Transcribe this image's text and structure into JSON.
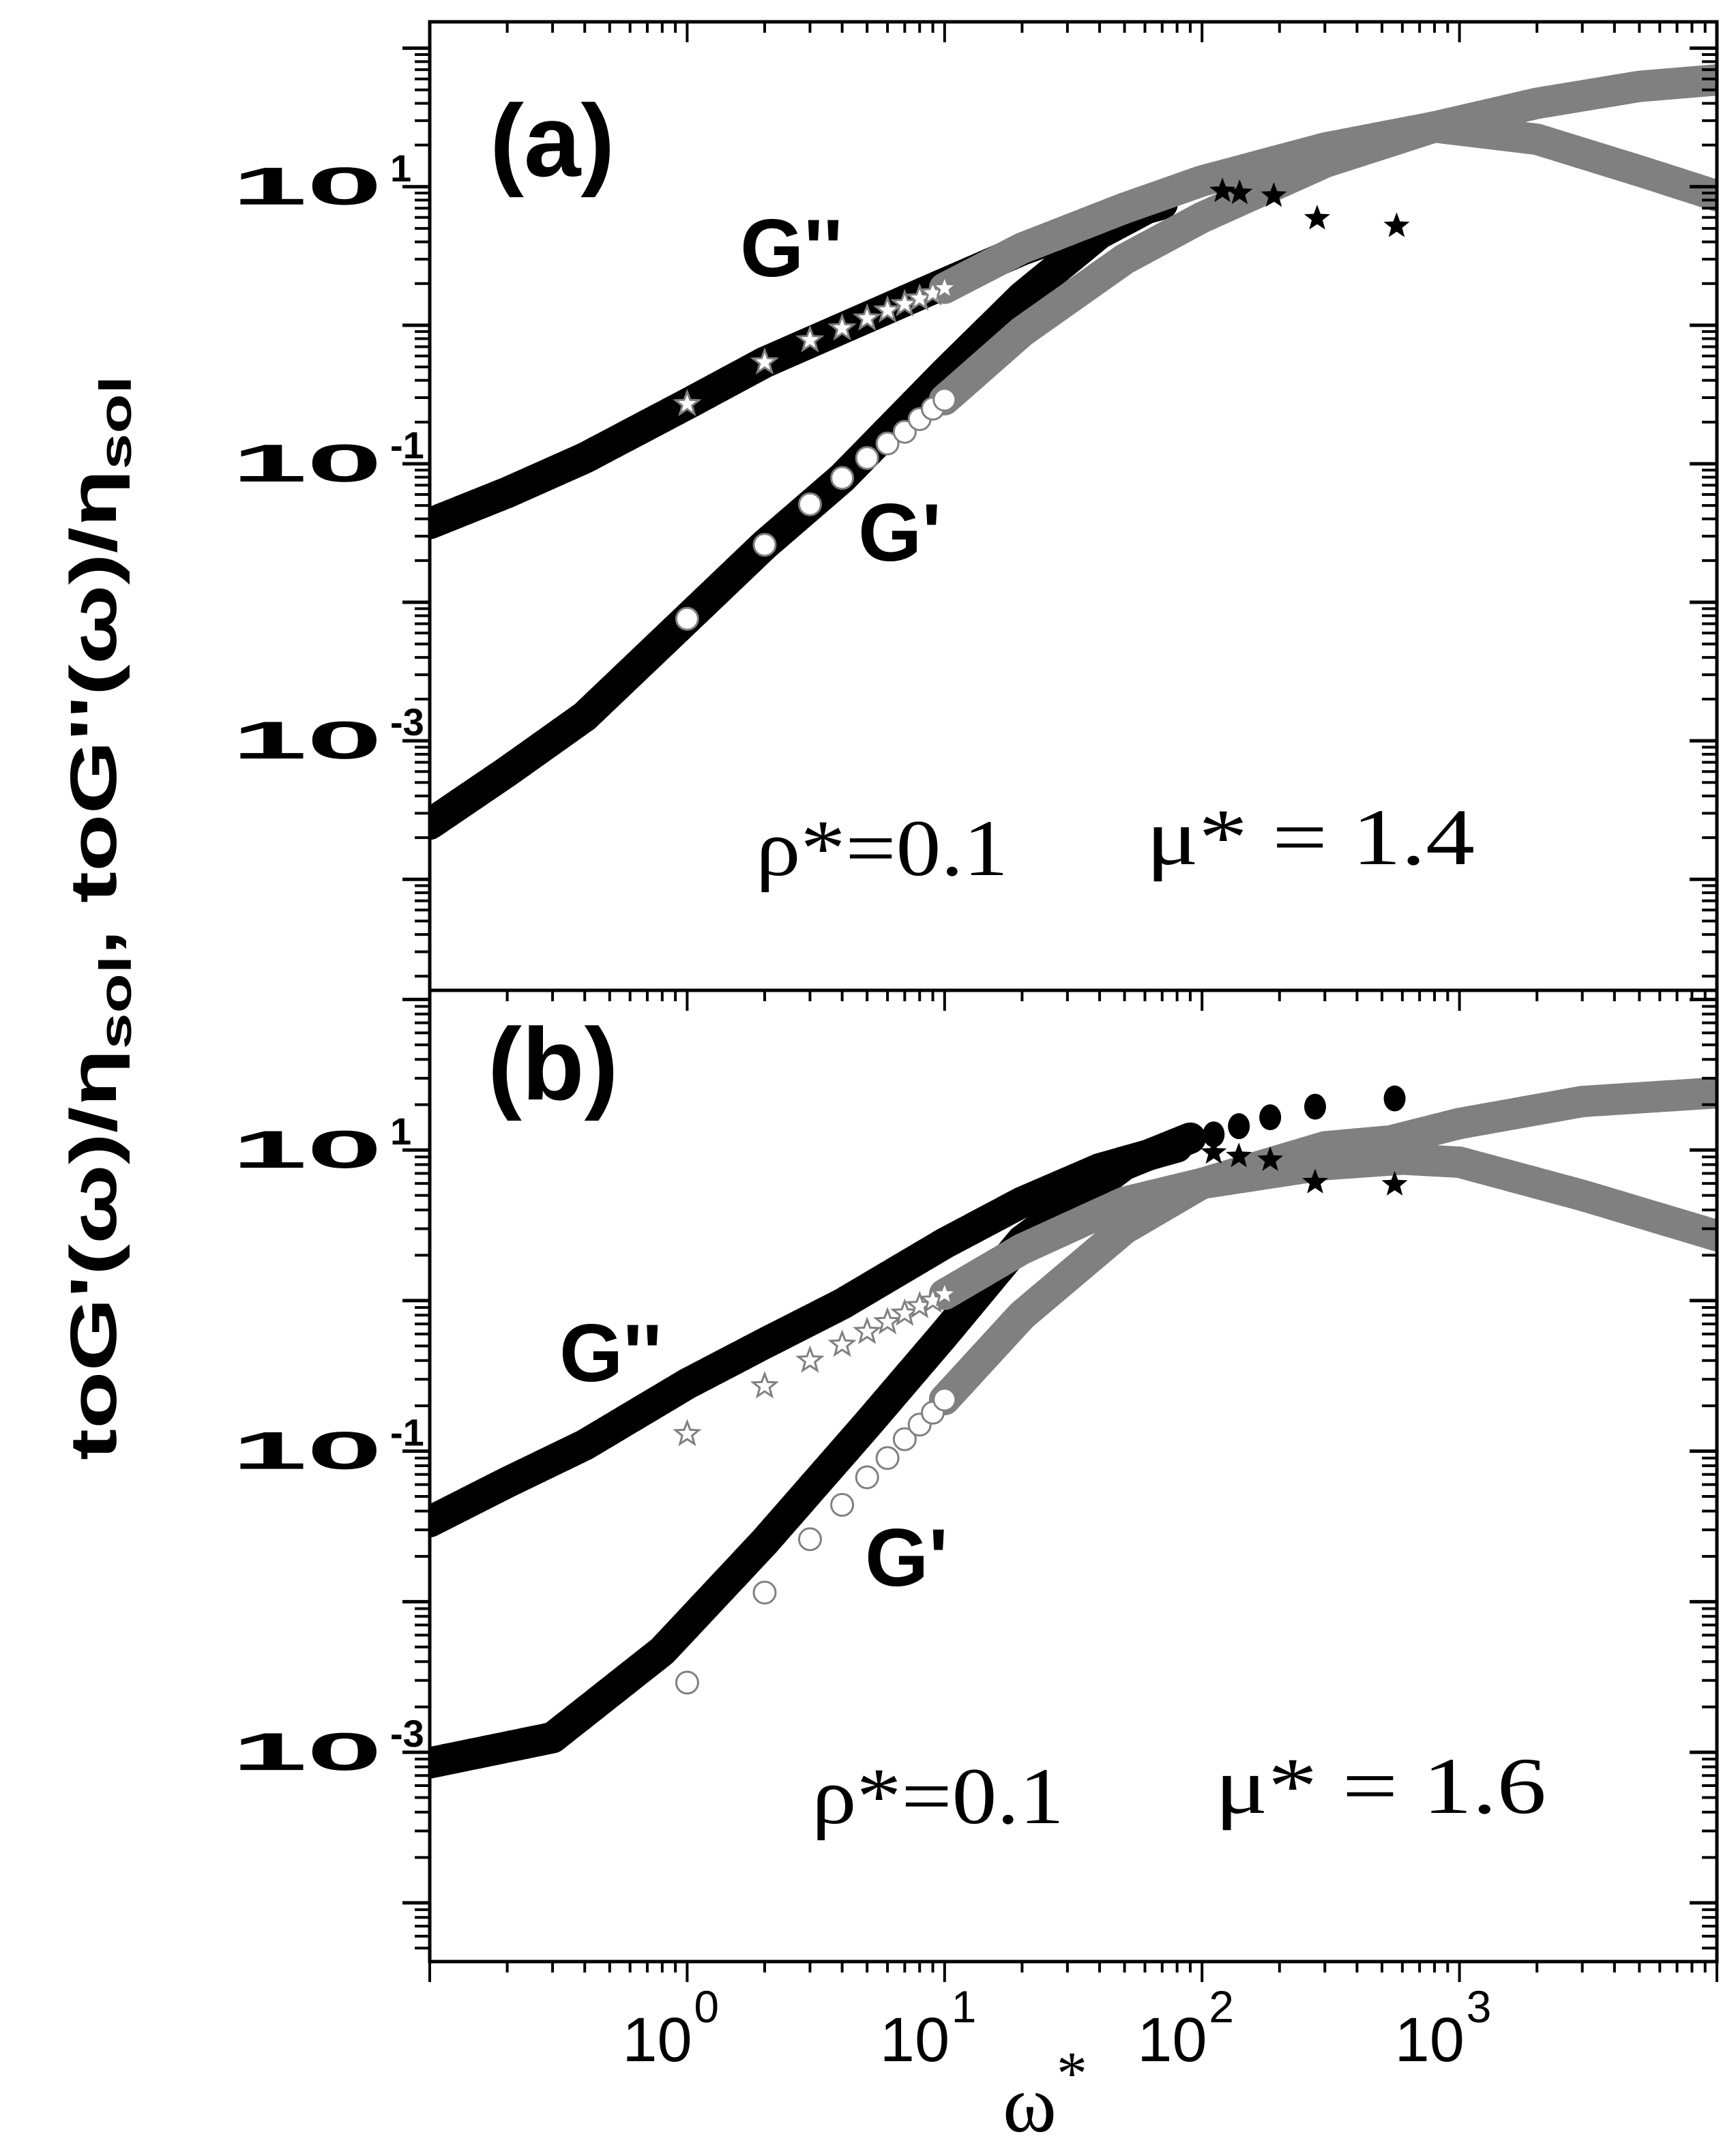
{
  "chart_data": [
    {
      "type": "scatter",
      "panel_label": "(a)",
      "xscale": "log",
      "yscale": "log",
      "xlim": [
        0.1,
        10000
      ],
      "ylim": [
        1.58e-05,
        155
      ],
      "xticks": [
        {
          "base": "10",
          "exp": "0",
          "value": 1
        },
        {
          "base": "10",
          "exp": "1",
          "value": 10
        },
        {
          "base": "10",
          "exp": "2",
          "value": 100
        },
        {
          "base": "10",
          "exp": "3",
          "value": 1000
        }
      ],
      "yticks": [
        {
          "base": "10",
          "exp": "1",
          "value": 10
        },
        {
          "base": "10",
          "exp": "-1",
          "value": 0.1
        },
        {
          "base": "10",
          "exp": "-3",
          "value": 0.001
        }
      ],
      "annotations": {
        "gpp": "G''",
        "gp": "G'",
        "rho": "ρ*=0.1",
        "mu": "μ*  = 1.4"
      },
      "series": [
        {
          "name": "G'' (black band)",
          "color": "#000000",
          "marker": "band",
          "x": [
            0.1,
            0.2,
            0.4,
            1,
            2,
            4,
            10,
            20,
            40,
            70
          ],
          "y": [
            0.037,
            0.062,
            0.11,
            0.27,
            0.54,
            0.95,
            2.0,
            3.5,
            5.6,
            7.5
          ]
        },
        {
          "name": "G' (black band)",
          "color": "#000000",
          "marker": "band",
          "x": [
            0.1,
            0.2,
            0.4,
            1,
            2,
            4,
            10,
            20,
            40,
            70
          ],
          "y": [
            0.00025,
            0.0006,
            0.0015,
            0.0076,
            0.026,
            0.079,
            0.45,
            1.6,
            4.6,
            8.0
          ]
        },
        {
          "name": "G' (gray open circles)",
          "color": "#808080",
          "marker": "open-circle",
          "x": [
            1,
            2,
            3,
            4,
            5,
            6,
            7,
            8,
            9,
            10
          ],
          "y": [
            0.0076,
            0.026,
            0.051,
            0.079,
            0.11,
            0.14,
            0.17,
            0.21,
            0.25,
            0.29
          ]
        },
        {
          "name": "G'' (gray open stars)",
          "color": "#808080",
          "marker": "open-star",
          "x": [
            1,
            2,
            3,
            4,
            5,
            6,
            7,
            8,
            9,
            10
          ],
          "y": [
            0.27,
            0.54,
            0.78,
            0.95,
            1.12,
            1.28,
            1.42,
            1.56,
            1.7,
            1.85
          ]
        },
        {
          "name": "G' (gray band)",
          "color": "#808080",
          "marker": "band",
          "x": [
            10,
            20,
            50,
            100,
            300,
            800,
            2000,
            5000,
            10000
          ],
          "y": [
            0.29,
            0.9,
            3.0,
            6.0,
            15,
            27,
            40,
            53,
            59
          ]
        },
        {
          "name": "G'' (gray band)",
          "color": "#808080",
          "marker": "band",
          "x": [
            10,
            20,
            50,
            100,
            300,
            800,
            2000,
            5000,
            10000
          ],
          "y": [
            1.85,
            3.6,
            7.0,
            11,
            19,
            27,
            22,
            13,
            8.6
          ]
        },
        {
          "name": "G'' (black stars)",
          "color": "#000000",
          "marker": "filled-star",
          "x": [
            120,
            140,
            190,
            280,
            570
          ],
          "y": [
            9.3,
            9.0,
            8.6,
            5.9,
            5.2
          ]
        }
      ]
    },
    {
      "type": "scatter",
      "panel_label": "(b)",
      "xscale": "log",
      "yscale": "log",
      "xlim": [
        0.1,
        10000
      ],
      "ylim": [
        4.07e-05,
        115
      ],
      "xticks": [
        {
          "base": "10",
          "exp": "0",
          "value": 1
        },
        {
          "base": "10",
          "exp": "1",
          "value": 10
        },
        {
          "base": "10",
          "exp": "2",
          "value": 100
        },
        {
          "base": "10",
          "exp": "3",
          "value": 1000
        }
      ],
      "yticks": [
        {
          "base": "10",
          "exp": "1",
          "value": 10
        },
        {
          "base": "10",
          "exp": "-1",
          "value": 0.1
        },
        {
          "base": "10",
          "exp": "-3",
          "value": 0.001
        }
      ],
      "annotations": {
        "gpp": "G''",
        "gp": "G'",
        "rho": "ρ*=0.1",
        "mu": "μ*  = 1.6"
      },
      "series": [
        {
          "name": "G'' (black band)",
          "color": "#000000",
          "marker": "band",
          "x": [
            0.1,
            0.2,
            0.4,
            1,
            2,
            4,
            10,
            20,
            40,
            80
          ],
          "y": [
            0.034,
            0.062,
            0.11,
            0.28,
            0.52,
            0.95,
            2.4,
            4.5,
            7.5,
            10.5
          ]
        },
        {
          "name": "G' (black band)",
          "color": "#000000",
          "marker": "band",
          "x": [
            0.1,
            0.3,
            0.8,
            2,
            5,
            10,
            20,
            50,
            90
          ],
          "y": [
            0.00085,
            0.00125,
            0.0047,
            0.025,
            0.15,
            0.6,
            2.5,
            8,
            12
          ]
        },
        {
          "name": "G' (gray open circles)",
          "color": "#808080",
          "marker": "open-circle",
          "x": [
            1,
            2,
            3,
            4,
            5,
            6,
            7,
            8,
            9,
            10
          ],
          "y": [
            0.0029,
            0.0115,
            0.026,
            0.044,
            0.067,
            0.09,
            0.12,
            0.15,
            0.18,
            0.22
          ]
        },
        {
          "name": "G'' (gray open stars)",
          "color": "#808080",
          "marker": "open-star",
          "x": [
            1,
            2,
            3,
            4,
            5,
            6,
            7,
            8,
            9,
            10
          ],
          "y": [
            0.13,
            0.27,
            0.4,
            0.51,
            0.62,
            0.72,
            0.82,
            0.92,
            1.0,
            1.1
          ]
        },
        {
          "name": "G' (gray band)",
          "color": "#808080",
          "marker": "band",
          "x": [
            10,
            20,
            50,
            100,
            300,
            540,
            1000,
            3000,
            10000
          ],
          "y": [
            0.22,
            0.8,
            3.0,
            6.0,
            10.5,
            11.5,
            15,
            21,
            24
          ]
        },
        {
          "name": "G'' (gray band)",
          "color": "#808080",
          "marker": "band",
          "x": [
            10,
            20,
            50,
            100,
            300,
            600,
            1000,
            3000,
            10000
          ],
          "y": [
            1.1,
            2.2,
            4.5,
            6.0,
            8.0,
            8.7,
            8.3,
            5.0,
            2.7
          ]
        },
        {
          "name": "G' (black filled circles)",
          "color": "#000000",
          "marker": "filled-circle",
          "x": [
            111,
            139,
            184,
            275,
            560
          ],
          "y": [
            12.7,
            14.4,
            16.5,
            19.4,
            22
          ]
        },
        {
          "name": "G'' (black stars)",
          "color": "#000000",
          "marker": "filled-star",
          "x": [
            111,
            139,
            184,
            275,
            560
          ],
          "y": [
            9.6,
            9.1,
            8.6,
            6.1,
            5.9
          ]
        }
      ]
    }
  ],
  "axes": {
    "xlabel": "ω",
    "xlabel_sup": "*",
    "ylabel_parts": [
      "toG'(ω)/η",
      "sol",
      ",  toG''(ω)/η",
      "sol"
    ]
  }
}
